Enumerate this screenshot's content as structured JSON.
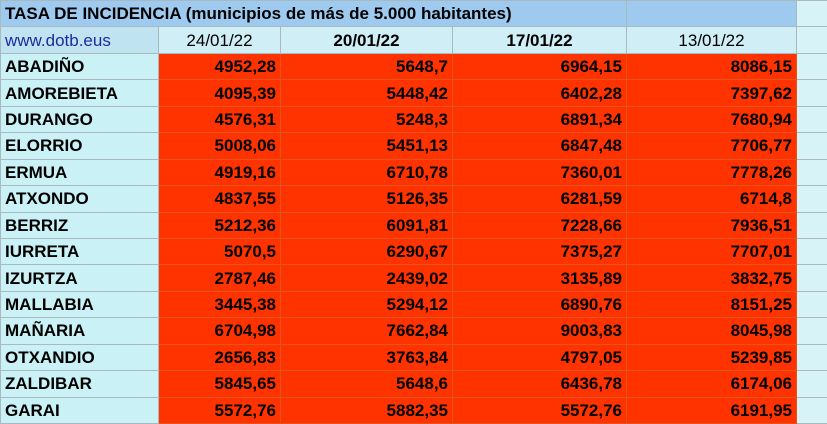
{
  "title": "TASA DE INCIDENCIA  (municipios de más de 5.000 habitantes)",
  "site": "www.dotb.eus",
  "dates": [
    "24/01/22",
    "20/01/22",
    "17/01/22",
    "13/01/22"
  ],
  "colors": {
    "header_blue": "#9ecaf0",
    "light_cyan": "#c9f1f6",
    "value_red": "#ff3300",
    "site_text": "#1f2a9c"
  },
  "rows": [
    {
      "name": "ABADIÑO",
      "values": [
        "4952,28",
        "5648,7",
        "6964,15",
        "8086,15"
      ]
    },
    {
      "name": "AMOREBIETA",
      "values": [
        "4095,39",
        "5448,42",
        "6402,28",
        "7397,62"
      ]
    },
    {
      "name": "DURANGO",
      "values": [
        "4576,31",
        "5248,3",
        "6891,34",
        "7680,94"
      ]
    },
    {
      "name": "ELORRIO",
      "values": [
        "5008,06",
        "5451,13",
        "6847,48",
        "7706,77"
      ]
    },
    {
      "name": "ERMUA",
      "values": [
        "4919,16",
        "6710,78",
        "7360,01",
        "7778,26"
      ]
    },
    {
      "name": "ATXONDO",
      "values": [
        "4837,55",
        "5126,35",
        "6281,59",
        "6714,8"
      ]
    },
    {
      "name": "BERRIZ",
      "values": [
        "5212,36",
        "6091,81",
        "7228,66",
        "7936,51"
      ]
    },
    {
      "name": "IURRETA",
      "values": [
        "5070,5",
        "6290,67",
        "7375,27",
        "7707,01"
      ]
    },
    {
      "name": "IZURTZA",
      "values": [
        "2787,46",
        "2439,02",
        "3135,89",
        "3832,75"
      ]
    },
    {
      "name": "MALLABIA",
      "values": [
        "3445,38",
        "5294,12",
        "6890,76",
        "8151,25"
      ]
    },
    {
      "name": "MAÑARIA",
      "values": [
        "6704,98",
        "7662,84",
        "9003,83",
        "8045,98"
      ]
    },
    {
      "name": "OTXANDIO",
      "values": [
        "2656,83",
        "3763,84",
        "4797,05",
        "5239,85"
      ]
    },
    {
      "name": "ZALDIBAR",
      "values": [
        "5845,65",
        "5648,6",
        "6436,78",
        "6174,06"
      ]
    },
    {
      "name": "GARAI",
      "values": [
        "5572,76",
        "5882,35",
        "5572,76",
        "6191,95"
      ]
    }
  ]
}
